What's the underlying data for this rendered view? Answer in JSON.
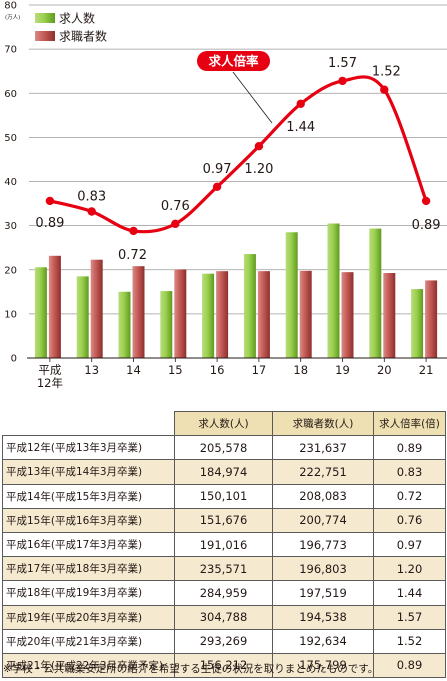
{
  "chart_data": {
    "type": "bar+line",
    "y_axis": {
      "min": 0,
      "max": 80,
      "step": 10,
      "unit": "(万人)"
    },
    "categories": [
      "平成\n12年",
      "13",
      "14",
      "15",
      "16",
      "17",
      "18",
      "19",
      "20",
      "21"
    ],
    "series": [
      {
        "name": "求人数",
        "type": "bar",
        "color": "#8dc73f",
        "values": [
          20.5578,
          18.4974,
          15.0101,
          15.1676,
          19.1016,
          23.5571,
          28.4959,
          30.4788,
          29.3269,
          15.6212
        ]
      },
      {
        "name": "求職者数",
        "type": "bar",
        "color": "#c0504d",
        "values": [
          23.1637,
          22.2751,
          20.8083,
          20.0774,
          19.6773,
          19.6803,
          19.7519,
          19.4538,
          19.2634,
          17.5799
        ]
      },
      {
        "name": "求人倍率",
        "type": "line",
        "color": "#e60012",
        "labels": [
          "0.89",
          "0.83",
          "0.72",
          "0.76",
          "0.97",
          "1.20",
          "1.44",
          "1.57",
          "1.52",
          "0.89"
        ],
        "values": [
          0.89,
          0.83,
          0.72,
          0.76,
          0.97,
          1.2,
          1.44,
          1.57,
          1.52,
          0.89
        ]
      }
    ],
    "callout_label": "求人倍率"
  },
  "table": {
    "headers": [
      "求人数(人)",
      "求職者数(人)",
      "求人倍率(倍)"
    ],
    "rows": [
      {
        "label": "平成12年(平成13年3月卒業)",
        "jobs": "205,578",
        "seekers": "231,637",
        "ratio": "0.89"
      },
      {
        "label": "平成13年(平成14年3月卒業)",
        "jobs": "184,974",
        "seekers": "222,751",
        "ratio": "0.83"
      },
      {
        "label": "平成14年(平成15年3月卒業)",
        "jobs": "150,101",
        "seekers": "208,083",
        "ratio": "0.72"
      },
      {
        "label": "平成15年(平成16年3月卒業)",
        "jobs": "151,676",
        "seekers": "200,774",
        "ratio": "0.76"
      },
      {
        "label": "平成16年(平成17年3月卒業)",
        "jobs": "191,016",
        "seekers": "196,773",
        "ratio": "0.97"
      },
      {
        "label": "平成17年(平成18年3月卒業)",
        "jobs": "235,571",
        "seekers": "196,803",
        "ratio": "1.20"
      },
      {
        "label": "平成18年(平成19年3月卒業)",
        "jobs": "284,959",
        "seekers": "197,519",
        "ratio": "1.44"
      },
      {
        "label": "平成19年(平成20年3月卒業)",
        "jobs": "304,788",
        "seekers": "194,538",
        "ratio": "1.57"
      },
      {
        "label": "平成20年(平成21年3月卒業)",
        "jobs": "293,269",
        "seekers": "192,634",
        "ratio": "1.52"
      },
      {
        "label": "平成21年(平成22年3月卒業予定)",
        "jobs": "156,212",
        "seekers": "175,799",
        "ratio": "0.89"
      }
    ]
  },
  "footnote": "※学校・公共職業安定所の紹介を希望する生徒の状況を取りまとめたものです。"
}
